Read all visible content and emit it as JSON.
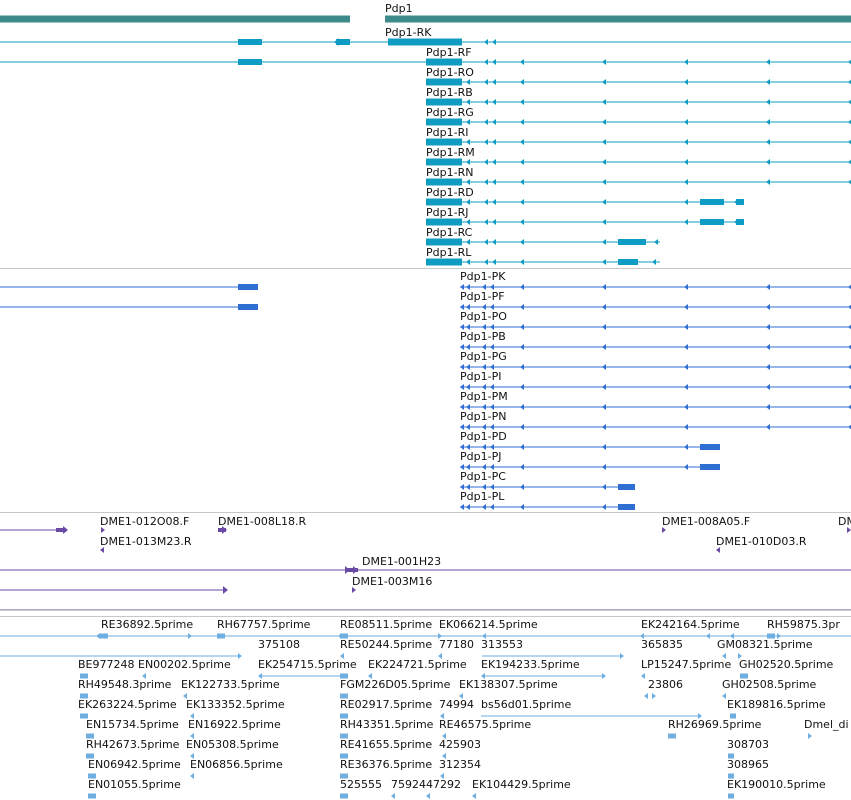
{
  "colors": {
    "gene": "#3d8a8a",
    "transcript_r": "#0f9cc2",
    "protein_p": "#2f6fd4",
    "probe": "#6a4aa5",
    "cdna": "#6eaee0",
    "separator": "#c8c8c8",
    "label_text": "#111111"
  },
  "gene_track": {
    "gene_label": "Pdp1",
    "transcript_labels": [
      "Pdp1-RK",
      "Pdp1-RF",
      "Pdp1-RO",
      "Pdp1-RB",
      "Pdp1-RG",
      "Pdp1-RI",
      "Pdp1-RM",
      "Pdp1-RN",
      "Pdp1-RD",
      "Pdp1-RJ",
      "Pdp1-RC",
      "Pdp1-RL"
    ]
  },
  "protein_track": {
    "labels": [
      "Pdp1-PK",
      "Pdp1-PF",
      "Pdp1-PO",
      "Pdp1-PB",
      "Pdp1-PG",
      "Pdp1-PI",
      "Pdp1-PM",
      "Pdp1-PN",
      "Pdp1-PD",
      "Pdp1-PJ",
      "Pdp1-PC",
      "Pdp1-PL"
    ]
  },
  "probe_track": {
    "labels": [
      "DME1-012O08.F",
      "DME1-008L18.R",
      "DME1-013M23.R",
      "DME1-008A05.F",
      "DM",
      "DME1-010D03.R",
      "DME1-001H23",
      "DME1-003M16"
    ]
  },
  "cdna_track": {
    "labels": [
      "RE36892.5prime",
      "RH67757.5prime",
      "RE08511.5prime",
      "EK066214.5prime",
      "EK242164.5prime",
      "RH59875.3pr",
      "375108",
      "RE50244.5prime",
      "77180",
      "313553",
      "365835",
      "GM08321.5prime",
      "BE977248",
      "EN00202.5prime",
      "EK254715.5prime",
      "EK224721.5prime",
      "EK194233.5prime",
      "LP15247.5prime",
      "GH02520.5prime",
      "RH49548.3prime",
      "EK122733.5prime",
      "FGM226D05.5prime",
      "EK138307.5prime",
      "23806",
      "GH02508.5prime",
      "EK263224.5prime",
      "EK133352.5prime",
      "RE02917.5prime",
      "74994",
      "bs56d01.5prime",
      "EK189816.5prime",
      "EN15734.5prime",
      "EN16922.5prime",
      "RH43351.5prime",
      "RE46575.5prime",
      "RH26969.5prime",
      "Dmel_di",
      "RH42673.5prime",
      "EN05308.5prime",
      "RE41655.5prime",
      "425903",
      "308703",
      "EN06942.5prime",
      "EN06856.5prime",
      "RE36376.5prime",
      "312354",
      "308965",
      "EN01055.5prime",
      "525555",
      "75924",
      "47292",
      "EK104429.5prime",
      "EK190010.5prime"
    ]
  }
}
